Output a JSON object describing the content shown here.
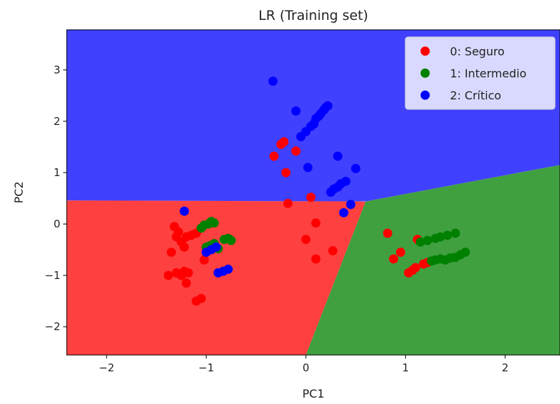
{
  "chart_data": {
    "type": "scatter",
    "title": "LR (Training set)",
    "xlabel": "PC1",
    "ylabel": "PC2",
    "xlim": [
      -2.4,
      2.55
    ],
    "ylim": [
      -2.55,
      3.78
    ],
    "xticks": [
      -2,
      -1,
      0,
      1,
      2
    ],
    "yticks": [
      -2,
      -1,
      0,
      1,
      2,
      3
    ],
    "xtick_labels": [
      "−2",
      "−1",
      "0",
      "1",
      "2"
    ],
    "ytick_labels": [
      "−2",
      "−1",
      "0",
      "1",
      "2",
      "3"
    ],
    "legend_position": "top-right",
    "grid": false,
    "decision_regions": [
      {
        "class": "0",
        "color": "#ff4040",
        "polygon": [
          [
            -2.4,
            0.46
          ],
          [
            0.6,
            0.44
          ],
          [
            0.0,
            -2.55
          ],
          [
            -2.4,
            -2.55
          ]
        ]
      },
      {
        "class": "1",
        "color": "#40a040",
        "polygon": [
          [
            0.6,
            0.44
          ],
          [
            2.55,
            1.15
          ],
          [
            2.55,
            -2.55
          ],
          [
            0.0,
            -2.55
          ]
        ]
      },
      {
        "class": "2",
        "color": "#4040ff",
        "polygon": [
          [
            -2.4,
            3.78
          ],
          [
            2.55,
            3.78
          ],
          [
            2.55,
            1.15
          ],
          [
            0.6,
            0.44
          ],
          [
            -2.4,
            0.46
          ]
        ]
      }
    ],
    "series": [
      {
        "name": "0: Seguro",
        "color": "#ff0000",
        "points": [
          [
            -1.35,
            -0.55
          ],
          [
            -1.32,
            -0.05
          ],
          [
            -1.3,
            -0.25
          ],
          [
            -1.28,
            -0.15
          ],
          [
            -1.25,
            -0.35
          ],
          [
            -1.22,
            -0.45
          ],
          [
            -1.2,
            -0.25
          ],
          [
            -1.15,
            -0.22
          ],
          [
            -1.1,
            -0.18
          ],
          [
            -1.3,
            -0.95
          ],
          [
            -1.25,
            -1.0
          ],
          [
            -1.22,
            -0.92
          ],
          [
            -1.18,
            -0.95
          ],
          [
            -1.2,
            -1.15
          ],
          [
            -1.1,
            -1.5
          ],
          [
            -1.05,
            -1.45
          ],
          [
            -1.02,
            -0.7
          ],
          [
            -1.38,
            -1.0
          ],
          [
            -0.32,
            1.32
          ],
          [
            -0.25,
            1.55
          ],
          [
            -0.22,
            1.6
          ],
          [
            -0.2,
            1.0
          ],
          [
            -0.1,
            1.42
          ],
          [
            -0.18,
            0.4
          ],
          [
            0.05,
            0.52
          ],
          [
            0.1,
            0.02
          ],
          [
            0.0,
            -0.3
          ],
          [
            0.1,
            -0.68
          ],
          [
            0.27,
            -0.52
          ],
          [
            0.82,
            -0.18
          ],
          [
            0.88,
            -0.68
          ],
          [
            0.95,
            -0.55
          ],
          [
            1.03,
            -0.95
          ],
          [
            1.07,
            -0.9
          ],
          [
            1.1,
            -0.85
          ],
          [
            1.12,
            -0.3
          ],
          [
            1.18,
            -0.78
          ],
          [
            1.22,
            -0.75
          ]
        ]
      },
      {
        "name": "1: Intermedio",
        "color": "#008000",
        "points": [
          [
            -1.05,
            -0.08
          ],
          [
            -1.02,
            -0.02
          ],
          [
            -0.98,
            0.0
          ],
          [
            -0.95,
            0.05
          ],
          [
            -0.92,
            0.02
          ],
          [
            -1.0,
            -0.45
          ],
          [
            -0.96,
            -0.42
          ],
          [
            -0.92,
            -0.38
          ],
          [
            -0.88,
            -0.48
          ],
          [
            -0.82,
            -0.3
          ],
          [
            -0.78,
            -0.28
          ],
          [
            -0.75,
            -0.32
          ],
          [
            1.15,
            -0.35
          ],
          [
            1.22,
            -0.32
          ],
          [
            1.3,
            -0.28
          ],
          [
            1.35,
            -0.25
          ],
          [
            1.42,
            -0.22
          ],
          [
            1.5,
            -0.18
          ],
          [
            1.26,
            -0.72
          ],
          [
            1.3,
            -0.7
          ],
          [
            1.35,
            -0.68
          ],
          [
            1.4,
            -0.7
          ],
          [
            1.45,
            -0.66
          ],
          [
            1.5,
            -0.65
          ],
          [
            1.55,
            -0.6
          ],
          [
            1.6,
            -0.55
          ]
        ]
      },
      {
        "name": "2: Crítico",
        "color": "#0000ff",
        "points": [
          [
            -1.22,
            0.25
          ],
          [
            -1.0,
            -0.55
          ],
          [
            -0.95,
            -0.5
          ],
          [
            -0.9,
            -0.45
          ],
          [
            -0.88,
            -0.95
          ],
          [
            -0.83,
            -0.92
          ],
          [
            -0.78,
            -0.88
          ],
          [
            -0.33,
            2.78
          ],
          [
            -0.1,
            2.2
          ],
          [
            -0.05,
            1.7
          ],
          [
            0.0,
            1.8
          ],
          [
            0.05,
            1.9
          ],
          [
            0.08,
            1.95
          ],
          [
            0.1,
            2.05
          ],
          [
            0.13,
            2.1
          ],
          [
            0.15,
            2.15
          ],
          [
            0.18,
            2.22
          ],
          [
            0.2,
            2.27
          ],
          [
            0.22,
            2.3
          ],
          [
            0.02,
            1.1
          ],
          [
            0.25,
            0.62
          ],
          [
            0.28,
            0.68
          ],
          [
            0.32,
            0.72
          ],
          [
            0.35,
            0.78
          ],
          [
            0.4,
            0.83
          ],
          [
            0.45,
            0.38
          ],
          [
            0.38,
            0.22
          ],
          [
            0.5,
            1.08
          ],
          [
            0.32,
            1.32
          ]
        ]
      }
    ]
  }
}
